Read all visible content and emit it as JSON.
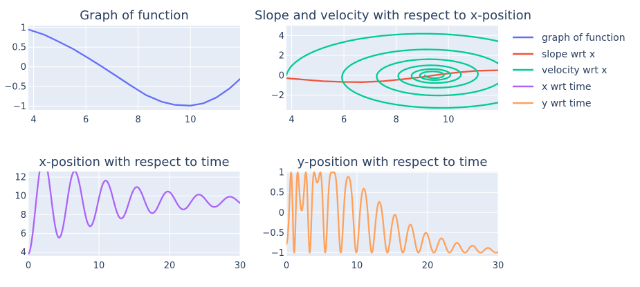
{
  "chart_data": [
    {
      "id": "graph",
      "type": "line",
      "title": "Graph of function",
      "xlabel": "",
      "ylabel": "",
      "xlim": [
        3.8,
        11.9
      ],
      "ylim": [
        -1.1,
        1.05
      ],
      "xticks": [
        4,
        6,
        8,
        10
      ],
      "yticks": [
        1,
        0.5,
        0,
        -0.5,
        -1
      ],
      "series": [
        {
          "name": "graph of function",
          "color": "#636efa",
          "x": [
            3.8,
            4.4,
            4.9,
            5.5,
            6.1,
            6.6,
            7.2,
            7.7,
            8.3,
            8.9,
            9.4,
            10.0,
            10.5,
            11.0,
            11.5,
            11.9
          ],
          "y": [
            0.95,
            0.82,
            0.66,
            0.46,
            0.22,
            0.01,
            -0.25,
            -0.47,
            -0.72,
            -0.89,
            -0.97,
            -0.99,
            -0.93,
            -0.78,
            -0.55,
            -0.31
          ]
        }
      ]
    },
    {
      "id": "slope",
      "type": "line",
      "title": "Slope and velocity with respect to x-position",
      "xlabel": "",
      "ylabel": "",
      "xlim": [
        3.8,
        11.9
      ],
      "ylim": [
        -3.5,
        5.0
      ],
      "xticks": [
        4,
        6,
        8,
        10
      ],
      "yticks": [
        4,
        2,
        0,
        -2
      ],
      "series": [
        {
          "name": "slope wrt x",
          "color": "#ef553b",
          "x": [
            3.8,
            4.5,
            5.2,
            6.0,
            6.7,
            7.5,
            8.2,
            9.0,
            9.7,
            10.4,
            11.1,
            11.9
          ],
          "y": [
            -0.3,
            -0.45,
            -0.6,
            -0.68,
            -0.7,
            -0.6,
            -0.42,
            -0.18,
            0.08,
            0.3,
            0.45,
            0.5
          ]
        },
        {
          "name": "velocity wrt x",
          "color": "#00cc96",
          "generator": "damped_spiral",
          "center": [
            9.42,
            0.0
          ],
          "x_start": 3.8,
          "x_amplitude_start": 5.62,
          "v_amplitude_start": 4.7,
          "turns": 6,
          "decay": 0.62
        }
      ]
    },
    {
      "id": "xpos",
      "type": "line",
      "title": "x-position with respect to time",
      "xlabel": "",
      "ylabel": "",
      "xlim": [
        0,
        30
      ],
      "ylim": [
        3.6,
        12.6
      ],
      "xticks": [
        0,
        10,
        20,
        30
      ],
      "yticks": [
        12,
        10,
        8,
        6,
        4
      ],
      "series": [
        {
          "name": "x wrt time",
          "color": "#ab63fa",
          "generator": "damped_oscillation",
          "baseline": 9.42,
          "start": 3.8,
          "period": 4.4,
          "decay": 0.085,
          "t_range": [
            0,
            30
          ]
        }
      ]
    },
    {
      "id": "ypos",
      "type": "line",
      "title": "y-position with respect to time",
      "xlabel": "",
      "ylabel": "",
      "xlim": [
        0,
        30
      ],
      "ylim": [
        -1.08,
        1.02
      ],
      "xticks": [
        0,
        10,
        20,
        30
      ],
      "yticks": [
        1,
        0.5,
        0,
        -0.5,
        -1
      ],
      "series": [
        {
          "name": "y wrt time",
          "color": "#ffa15a",
          "generator": "cos_of_x",
          "t_range": [
            0,
            30
          ]
        }
      ]
    }
  ],
  "legend": {
    "placement": "right",
    "items": [
      {
        "label": "graph of function",
        "color": "#636efa"
      },
      {
        "label": "slope wrt x",
        "color": "#ef553b"
      },
      {
        "label": "velocity wrt x",
        "color": "#00cc96"
      },
      {
        "label": "x wrt time",
        "color": "#ab63fa"
      },
      {
        "label": "y wrt time",
        "color": "#ffa15a"
      }
    ]
  },
  "tick_text": {
    "one": "1",
    "half": "0.5",
    "zero": "0",
    "neg_half": "−0.5",
    "neg_one": "−1",
    "two": "2",
    "four": "4",
    "six": "6",
    "eight": "8",
    "ten": "10",
    "twelve": "12",
    "twenty": "20",
    "thirty": "30",
    "neg_two": "−2"
  }
}
